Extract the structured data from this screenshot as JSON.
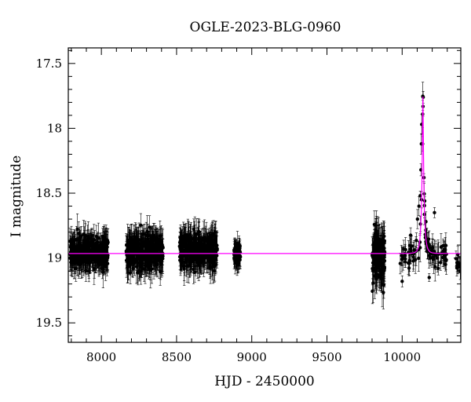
{
  "chart_data": {
    "type": "scatter",
    "title": "OGLE-2023-BLG-0960",
    "xlabel": "HJD - 2450000",
    "ylabel": "I magnitude",
    "xlim": [
      7780,
      10390
    ],
    "ylim": [
      19.65,
      17.38
    ],
    "y_inverted": true,
    "xticks": [
      8000,
      8500,
      9000,
      9500,
      10000
    ],
    "xtick_labels": [
      "8000",
      "8500",
      "9000",
      "9500",
      "10000"
    ],
    "yticks": [
      17.5,
      18,
      18.5,
      19,
      19.5
    ],
    "ytick_labels": [
      "17.5",
      "18",
      "18.5",
      "19",
      "19.5"
    ],
    "grid": false,
    "legend": "none",
    "colors": {
      "points": "#000000",
      "model": "#ff00ff",
      "axes": "#000000"
    },
    "series": [
      {
        "kind": "points_with_errorbars",
        "seasons": [
          {
            "x_range": [
              7790,
              8045
            ],
            "baseline": 18.96,
            "scatter": 0.09,
            "error": 0.09,
            "count": 360
          },
          {
            "x_range": [
              8165,
              8410
            ],
            "baseline": 18.95,
            "scatter": 0.1,
            "error": 0.1,
            "count": 380
          },
          {
            "x_range": [
              8520,
              8770
            ],
            "baseline": 18.94,
            "scatter": 0.1,
            "error": 0.1,
            "count": 360
          },
          {
            "x_range": [
              8880,
              8925
            ],
            "baseline": 18.97,
            "scatter": 0.06,
            "error": 0.07,
            "count": 70
          },
          {
            "x_range": [
              9800,
              9885
            ],
            "baseline": 19.0,
            "scatter": 0.16,
            "error": 0.13,
            "count": 150
          },
          {
            "x_range": [
              9985,
              10300
            ],
            "baseline": 18.96,
            "scatter": 0.08,
            "error": 0.08,
            "count": 90,
            "follows_model": true
          },
          {
            "x_range": [
              10355,
              10390
            ],
            "baseline": 19.05,
            "scatter": 0.05,
            "error": 0.06,
            "count": 12
          }
        ],
        "peak_points": [
          {
            "x": 10140,
            "y": 17.76
          },
          {
            "x": 10130,
            "y": 17.97
          },
          {
            "x": 10128,
            "y": 18.12
          },
          {
            "x": 10136,
            "y": 18.12
          },
          {
            "x": 10125,
            "y": 18.32
          },
          {
            "x": 10145,
            "y": 18.38
          },
          {
            "x": 10120,
            "y": 18.52
          },
          {
            "x": 10150,
            "y": 18.56
          },
          {
            "x": 10112,
            "y": 18.6
          },
          {
            "x": 10158,
            "y": 18.72
          },
          {
            "x": 10102,
            "y": 18.7
          },
          {
            "x": 10170,
            "y": 18.88
          },
          {
            "x": 10215,
            "y": 18.65
          },
          {
            "x": 10000,
            "y": 19.18
          },
          {
            "x": 10020,
            "y": 19.03
          },
          {
            "x": 10180,
            "y": 19.15
          },
          {
            "x": 10240,
            "y": 19.08
          }
        ]
      },
      {
        "kind": "model_curve",
        "baseline": 18.965,
        "peak_x": 10138,
        "peak_mag": 17.75,
        "u0": 0.14,
        "tE": 20
      }
    ]
  }
}
